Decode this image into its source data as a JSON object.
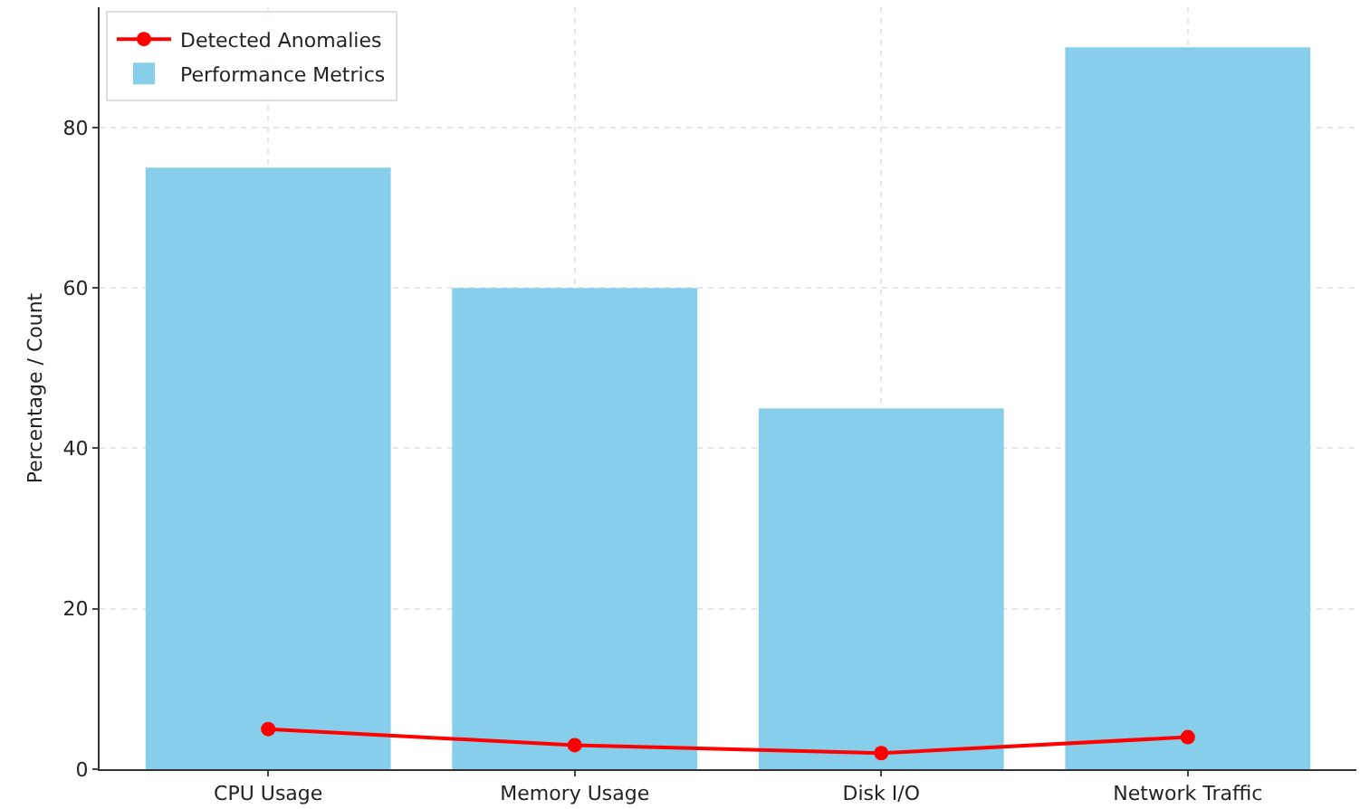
{
  "chart_data": {
    "type": "bar",
    "ylabel": "Percentage / Count",
    "categories": [
      "CPU Usage",
      "Memory Usage",
      "Disk I/O",
      "Network Traffic"
    ],
    "series": [
      {
        "name": "Performance Metrics",
        "color": "#87ceeb",
        "values": [
          75,
          60,
          45,
          90
        ]
      },
      {
        "name": "Detected Anomalies",
        "type": "line",
        "color": "#ff0000",
        "values": [
          5,
          3,
          2,
          4
        ]
      }
    ],
    "ylim": [
      0,
      95
    ],
    "yticks": [
      0,
      20,
      40,
      60,
      80
    ],
    "grid": true,
    "legend": "top left",
    "marker": "circle",
    "line_style": "solid"
  }
}
